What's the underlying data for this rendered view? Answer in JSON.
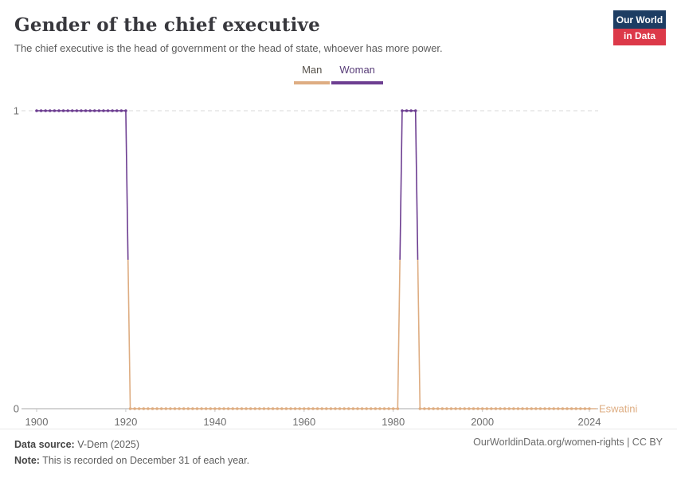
{
  "header": {
    "title": "Gender of the chief executive",
    "subtitle": "The chief executive is the head of government or the head of state, whoever has more power.",
    "logo": {
      "line1": "Our World",
      "line2": "in Data"
    }
  },
  "legend": {
    "items": [
      {
        "label": "Man",
        "color": "#DEAD82",
        "text_color": "#555049"
      },
      {
        "label": "Woman",
        "color": "#6D3E91",
        "text_color": "#583D78"
      }
    ]
  },
  "chart_data": {
    "type": "line",
    "step": true,
    "title": "Gender of the chief executive",
    "subtitle": "The chief executive is the head of government or the head of state, whoever has more power.",
    "entity": "Eswatini",
    "xlabel": "",
    "ylabel": "",
    "x_range": [
      1900,
      2024
    ],
    "ylim": [
      0,
      1
    ],
    "x_ticks": [
      1900,
      1920,
      1940,
      1960,
      1980,
      2000,
      2024
    ],
    "y_ticks": [
      0,
      1
    ],
    "grid": "dashed horizontal line at y=1, solid axis at y=0",
    "legend_position": "top center",
    "value_meaning": {
      "0": "Man",
      "1": "Woman"
    },
    "colors": {
      "Man": "#DEAD82",
      "Woman": "#6D3E91"
    },
    "segments": [
      {
        "start_year": 1900,
        "end_year": 1920,
        "value": 1,
        "category": "Woman"
      },
      {
        "start_year": 1921,
        "end_year": 1981,
        "value": 0,
        "category": "Man"
      },
      {
        "start_year": 1982,
        "end_year": 1985,
        "value": 1,
        "category": "Woman"
      },
      {
        "start_year": 1986,
        "end_year": 2024,
        "value": 0,
        "category": "Man"
      }
    ]
  },
  "footer": {
    "source_label": "Data source:",
    "source_value": " V-Dem (2025)",
    "note_label": "Note:",
    "note_value": " This is recorded on December 31 of each year.",
    "link": "OurWorldinData.org/women-rights | CC BY"
  }
}
